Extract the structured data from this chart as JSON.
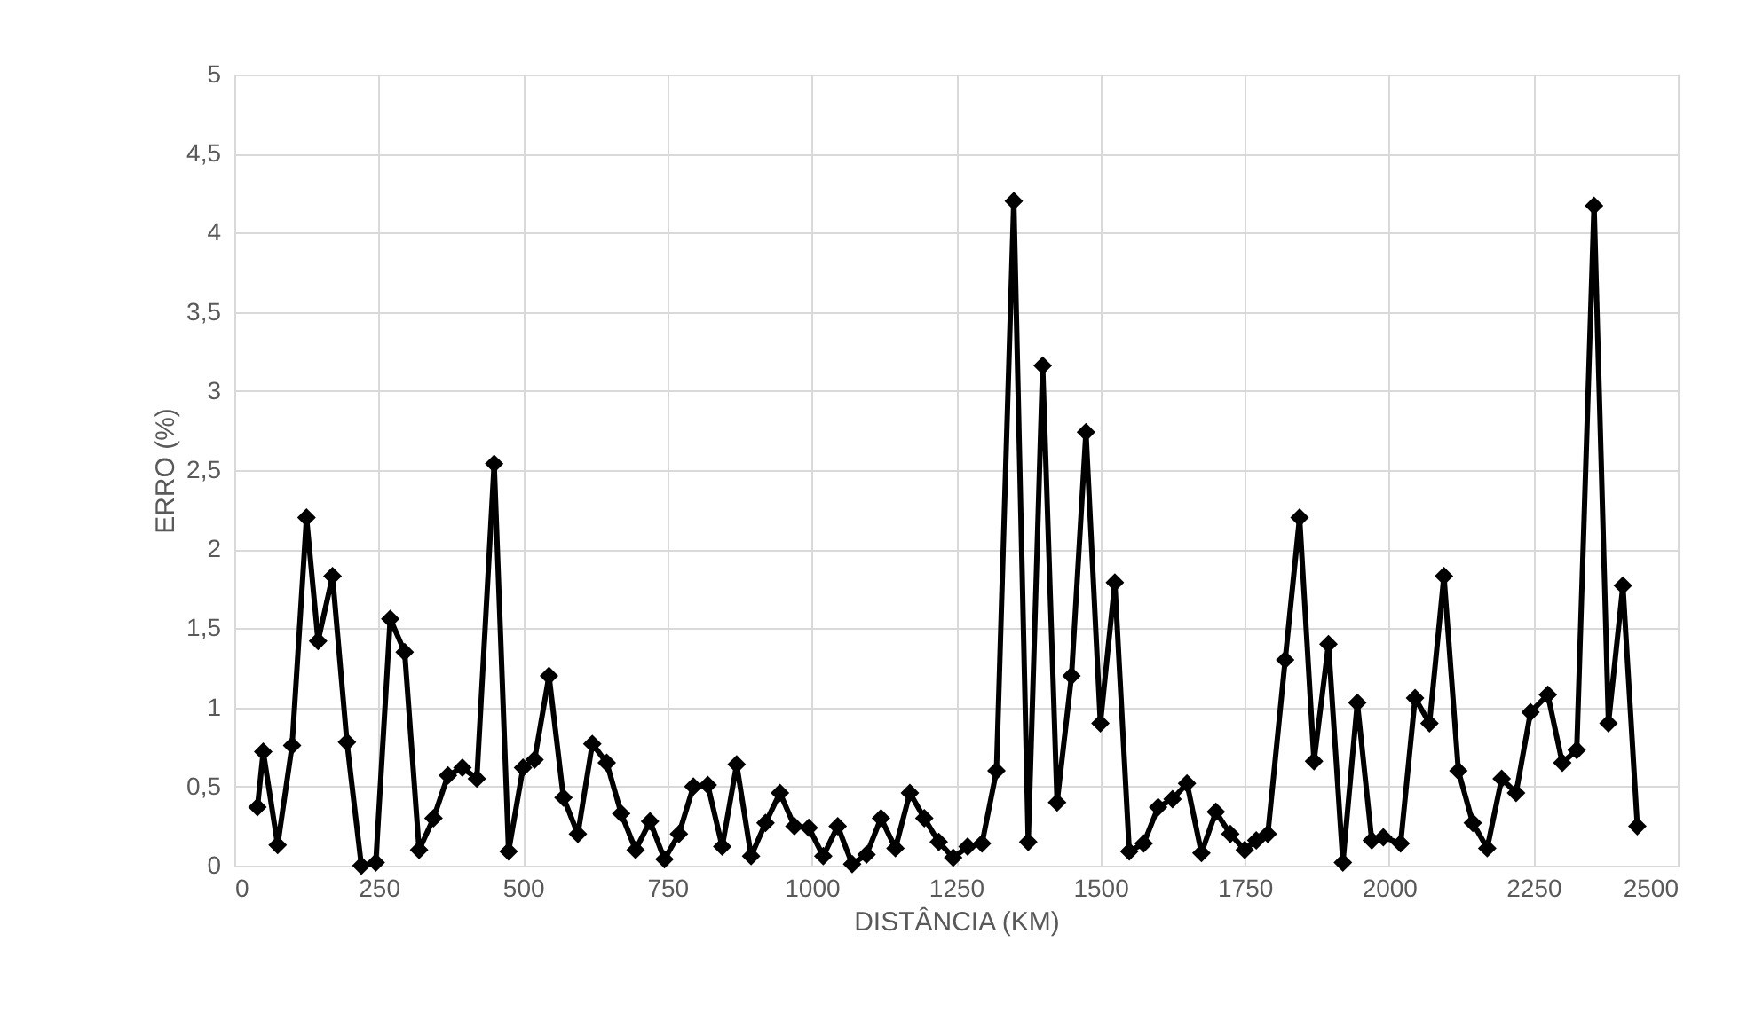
{
  "chart_data": {
    "type": "line",
    "xlabel": "DISTÂNCIA (KM)",
    "ylabel": "ERRO (%)",
    "x": [
      40,
      50,
      75,
      100,
      125,
      145,
      170,
      195,
      220,
      245,
      270,
      295,
      320,
      345,
      370,
      395,
      420,
      450,
      475,
      500,
      520,
      545,
      570,
      595,
      620,
      645,
      670,
      695,
      720,
      745,
      770,
      795,
      820,
      845,
      870,
      895,
      920,
      945,
      970,
      995,
      1020,
      1045,
      1070,
      1095,
      1120,
      1145,
      1170,
      1195,
      1220,
      1245,
      1270,
      1295,
      1320,
      1350,
      1375,
      1400,
      1425,
      1450,
      1475,
      1500,
      1525,
      1550,
      1575,
      1600,
      1625,
      1650,
      1675,
      1700,
      1725,
      1750,
      1770,
      1790,
      1820,
      1845,
      1870,
      1895,
      1920,
      1945,
      1970,
      1990,
      2020,
      2045,
      2070,
      2095,
      2120,
      2145,
      2170,
      2195,
      2220,
      2245,
      2275,
      2300,
      2325,
      2355,
      2380,
      2405,
      2430
    ],
    "series": [
      {
        "color": "#000000",
        "values": [
          0.37,
          0.72,
          0.13,
          0.76,
          2.2,
          1.42,
          1.83,
          0.78,
          0,
          0.02,
          1.56,
          1.35,
          0.1,
          0.3,
          0.57,
          0.62,
          0.55,
          2.54,
          0.09,
          0.62,
          0.67,
          1.2,
          0.43,
          0.2,
          0.77,
          0.65,
          0.33,
          0.1,
          0.28,
          0.04,
          0.2,
          0.5,
          0.51,
          0.12,
          0.64,
          0.06,
          0.27,
          0.46,
          0.25,
          0.24,
          0.06,
          0.25,
          0.01,
          0.07,
          0.3,
          0.11,
          0.46,
          0.3,
          0.15,
          0.05,
          0.12,
          0.14,
          0.6,
          4.2,
          0.15,
          3.16,
          0.4,
          1.2,
          2.74,
          0.9,
          1.79,
          0.09,
          0.14,
          0.37,
          0.42,
          0.52,
          0.08,
          0.34,
          0.2,
          0.1,
          0.16,
          0.2,
          1.3,
          2.2,
          0.66,
          1.4,
          0.02,
          1.03,
          0.16,
          0.18,
          0.14,
          1.06,
          0.9,
          1.83,
          0.6,
          0.27,
          0.11,
          0.55,
          0.46,
          0.97,
          1.08,
          0.65,
          0.73,
          4.17,
          0.9,
          1.77,
          0.25
        ]
      }
    ],
    "xlim": [
      0,
      2500
    ],
    "xticks": [
      0,
      250,
      500,
      750,
      1000,
      1250,
      1500,
      1750,
      2000,
      2250,
      2500
    ],
    "ylim": [
      0,
      5
    ],
    "yticks": [
      0,
      {
        "value": 0.5,
        "label": "0,5"
      },
      1,
      {
        "value": 1.5,
        "label": "1,5"
      },
      2,
      {
        "value": 2.5,
        "label": "2,5"
      },
      3,
      {
        "value": 3.5,
        "label": "3,5"
      },
      4,
      {
        "value": 4.5,
        "label": "4,5"
      },
      5
    ],
    "grid": true,
    "marker": "diamond",
    "line_style": "solid",
    "legend": false
  }
}
